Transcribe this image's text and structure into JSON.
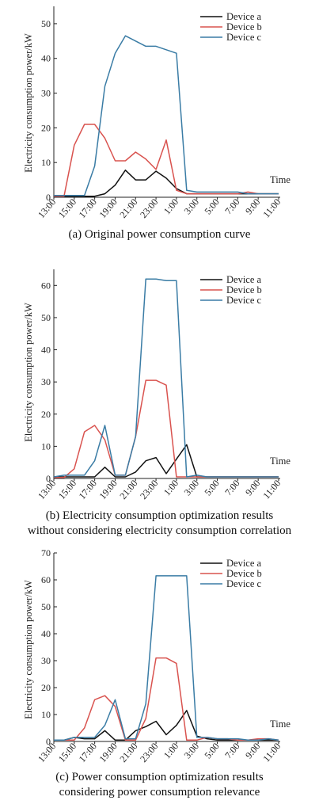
{
  "chart_data": [
    {
      "type": "line",
      "ylabel": "Electricity consumption power/kW",
      "xlabel": "Time",
      "caption": "(a) Original power consumption curve",
      "ylim": [
        0,
        55
      ],
      "yticks": [
        0,
        10,
        20,
        30,
        40,
        50
      ],
      "tick_labels": [
        "13:00",
        "15:00",
        "17:00",
        "19:00",
        "21:00",
        "23:00",
        "1:00",
        "3:00",
        "5:00",
        "7:00",
        "9:00",
        "11:00"
      ],
      "x": [
        13,
        14,
        15,
        16,
        17,
        18,
        19,
        20,
        21,
        22,
        23,
        24,
        25,
        26,
        27,
        28,
        29,
        30,
        31,
        32,
        33,
        34,
        35
      ],
      "series": [
        {
          "name": "Device a",
          "color": "#111111",
          "values": [
            0.3,
            0.3,
            0.3,
            0.3,
            0.3,
            1,
            3.5,
            7.8,
            5,
            5,
            7.5,
            5.5,
            2.5,
            1,
            1,
            1,
            1,
            1,
            1,
            1,
            1,
            1,
            1
          ]
        },
        {
          "name": "Device b",
          "color": "#d9534f",
          "values": [
            0.3,
            0.3,
            15,
            21,
            21,
            17,
            10.5,
            10.5,
            13,
            11,
            8,
            16.5,
            2,
            1,
            1,
            1,
            1,
            1,
            1,
            1.5,
            1,
            1,
            1
          ]
        },
        {
          "name": "Device c",
          "color": "#3a7ca5",
          "values": [
            0.5,
            0.5,
            0.5,
            0.5,
            9,
            32,
            41.5,
            46.5,
            45,
            43.5,
            43.5,
            42.5,
            41.5,
            2,
            1.5,
            1.5,
            1.5,
            1.5,
            1.5,
            1,
            1,
            1,
            1
          ]
        }
      ]
    },
    {
      "type": "line",
      "ylabel": "Electricity consumption power/kW",
      "xlabel": "Time",
      "caption": "(b) Electricity consumption optimization results without considering electricity consumption correlation",
      "caption_lines": [
        "(b) Electricity consumption optimization results",
        "without considering electricity consumption correlation"
      ],
      "ylim": [
        0,
        65
      ],
      "yticks": [
        0,
        10,
        20,
        30,
        40,
        50,
        60
      ],
      "tick_labels": [
        "13:00",
        "15:00",
        "17:00",
        "19:00",
        "21:00",
        "23:00",
        "1:00",
        "3:00",
        "5:00",
        "7:00",
        "9:00",
        "11:00"
      ],
      "x": [
        13,
        14,
        15,
        16,
        17,
        18,
        19,
        20,
        21,
        22,
        23,
        24,
        25,
        26,
        27,
        28,
        29,
        30,
        31,
        32,
        33,
        34,
        35
      ],
      "series": [
        {
          "name": "Device a",
          "color": "#111111",
          "values": [
            0.5,
            0.5,
            0.5,
            0.5,
            0.5,
            3.5,
            0.5,
            0.5,
            2,
            5.5,
            6.5,
            1.5,
            6,
            10.5,
            0.5,
            0.5,
            0.5,
            0.5,
            0.5,
            0.5,
            0.5,
            0.5,
            0.5
          ]
        },
        {
          "name": "Device b",
          "color": "#d9534f",
          "values": [
            0.3,
            0.3,
            3,
            14.5,
            16.5,
            12,
            1,
            1,
            13,
            30.5,
            30.5,
            29,
            0.5,
            0.5,
            0.5,
            0.5,
            0.5,
            0.5,
            0.5,
            0.5,
            0.5,
            0.5,
            0.5
          ]
        },
        {
          "name": "Device c",
          "color": "#3a7ca5",
          "values": [
            0.5,
            1,
            1,
            1,
            5.5,
            16.5,
            1,
            1,
            13,
            62,
            62,
            61.5,
            61.5,
            0.5,
            1,
            0.5,
            0.5,
            0.5,
            0.5,
            0.5,
            0.5,
            0.5,
            0.5
          ]
        }
      ]
    },
    {
      "type": "line",
      "ylabel": "Electricity consumption power/kW",
      "xlabel": "Time",
      "caption": "(c) Power consumption optimization results considering power consumption relevance",
      "caption_lines": [
        "(c) Power consumption optimization results",
        "considering power consumption relevance"
      ],
      "ylim": [
        0,
        70
      ],
      "yticks": [
        0,
        10,
        20,
        30,
        40,
        50,
        60,
        70
      ],
      "tick_labels": [
        "13:00",
        "15:00",
        "17:00",
        "19:00",
        "21:00",
        "23:00",
        "1:00",
        "3:00",
        "5:00",
        "7:00",
        "9:00",
        "11:00"
      ],
      "x": [
        13,
        14,
        15,
        16,
        17,
        18,
        19,
        20,
        21,
        22,
        23,
        24,
        25,
        26,
        27,
        28,
        29,
        30,
        31,
        32,
        33,
        34,
        35
      ],
      "series": [
        {
          "name": "Device a",
          "color": "#111111",
          "values": [
            0.5,
            0.5,
            1.5,
            1,
            1,
            4,
            0.5,
            0.5,
            4,
            5.5,
            7.5,
            2.5,
            6,
            11.5,
            2,
            1,
            0.5,
            0.5,
            0.5,
            0.5,
            0.5,
            0.5,
            0.5
          ]
        },
        {
          "name": "Device b",
          "color": "#d9534f",
          "values": [
            0.5,
            0.5,
            0.5,
            5,
            15.5,
            17,
            13,
            0.5,
            0.5,
            8.5,
            31,
            31,
            29,
            0.5,
            0.5,
            1.5,
            1,
            1,
            0.5,
            0.5,
            1,
            1,
            0.5
          ]
        },
        {
          "name": "Device c",
          "color": "#3a7ca5",
          "values": [
            0.5,
            0.5,
            1.5,
            1.5,
            1.5,
            6,
            15.5,
            1,
            1,
            14,
            61.5,
            61.5,
            61.5,
            61.5,
            1.5,
            1.5,
            1,
            1,
            1,
            0.5,
            0.5,
            1,
            0.5
          ]
        }
      ]
    }
  ]
}
